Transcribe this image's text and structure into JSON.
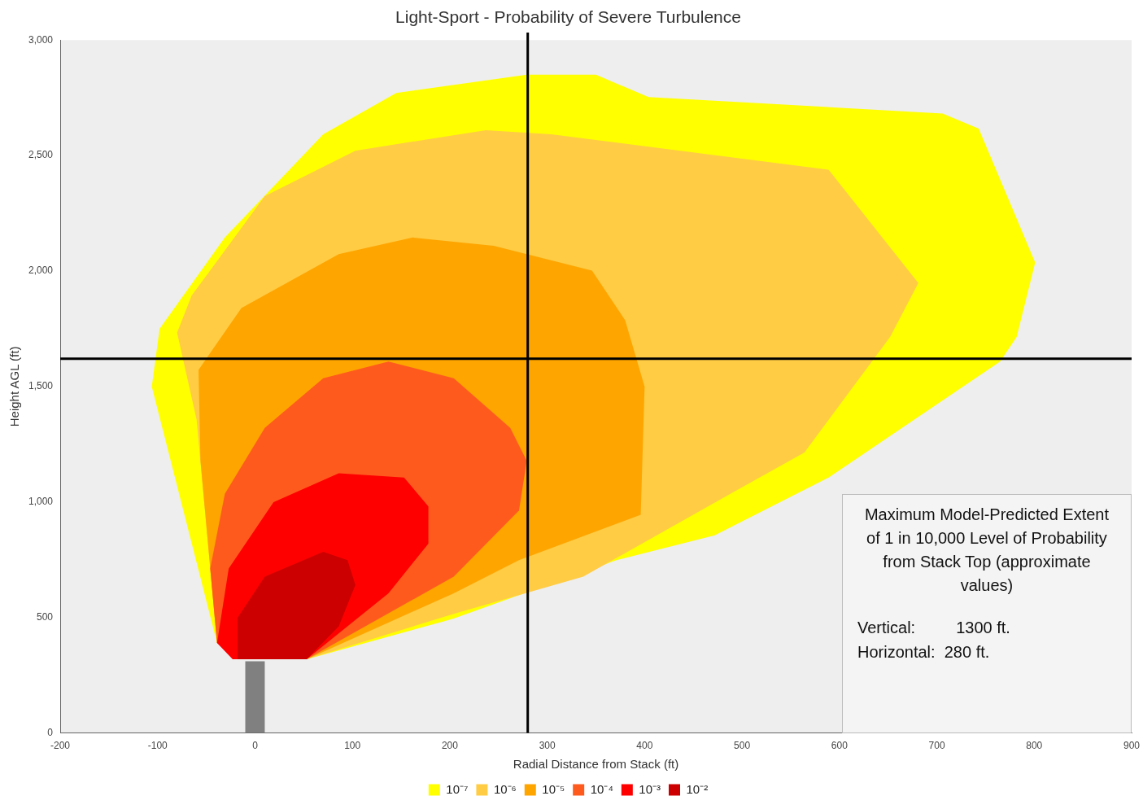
{
  "chart_data": {
    "type": "area",
    "title": "Light-Sport - Probability of Severe Turbulence",
    "xlabel": "Radial Distance from Stack (ft)",
    "ylabel": "Height AGL (ft)",
    "xlim": [
      -200,
      900
    ],
    "xticks": [
      -200,
      -100,
      0,
      100,
      200,
      300,
      400,
      500,
      600,
      700,
      800,
      900
    ],
    "ylim": [
      0,
      3000
    ],
    "yticks": [
      0,
      {
        "value": 500,
        "label": "500"
      },
      {
        "value": 1000,
        "label": "1,000"
      },
      {
        "value": 1500,
        "label": "1,500"
      },
      {
        "value": 2000,
        "label": "2,000"
      },
      {
        "value": 2500,
        "label": "2,500"
      },
      {
        "value": 3000,
        "label": "3,000"
      }
    ],
    "grid": false,
    "legend": "bottom",
    "marker": "none",
    "series": [
      {
        "name": "10⁻⁷",
        "color": "#ffff00",
        "x": [
          -39,
          -106,
          -98,
          -31,
          70,
          145,
          279,
          350,
          404,
          706,
          743,
          801,
          782,
          765,
          589,
          472,
          371,
          204,
          53,
          -14,
          -39
        ],
        "values": [
          390,
          1500,
          1750,
          2145,
          2592,
          2771,
          2850,
          2850,
          2753,
          2682,
          2617,
          2037,
          1715,
          1608,
          1106,
          856,
          748,
          495,
          319,
          319,
          390
        ]
      },
      {
        "name": "10⁻⁶",
        "color": "#ffcc44",
        "x": [
          -39,
          -60,
          -80,
          -65,
          10,
          103,
          237,
          304,
          589,
          681,
          652,
          564,
          488,
          337,
          204,
          53,
          -39
        ],
        "values": [
          390,
          1357,
          1733,
          1894,
          2324,
          2521,
          2610,
          2592,
          2438,
          1948,
          1715,
          1214,
          1035,
          677,
          516,
          319,
          390
        ]
      },
      {
        "name": "10⁻⁵",
        "color": "#ffa500",
        "x": [
          -39,
          -56,
          -58,
          -14,
          86,
          162,
          245,
          346,
          380,
          400,
          396,
          271,
          204,
          53,
          -39
        ],
        "values": [
          390,
          1178,
          1572,
          1840,
          2073,
          2145,
          2109,
          2002,
          1787,
          1500,
          945,
          748,
          605,
          319,
          390
        ]
      },
      {
        "name": "10⁻⁴",
        "color": "#ff5a1e",
        "x": [
          -39,
          -46,
          -31,
          10,
          70,
          137,
          204,
          262,
          279,
          271,
          204,
          53,
          -39
        ],
        "values": [
          390,
          712,
          1035,
          1321,
          1536,
          1608,
          1536,
          1321,
          1178,
          963,
          677,
          319,
          390
        ]
      },
      {
        "name": "10⁻³",
        "color": "#ff0000",
        "x": [
          -39,
          -27,
          19,
          86,
          153,
          178,
          178,
          137,
          53,
          -23,
          -39
        ],
        "values": [
          390,
          712,
          999,
          1124,
          1106,
          981,
          820,
          605,
          319,
          319,
          390
        ]
      },
      {
        "name": "10⁻²",
        "color": "#cc0000",
        "x": [
          -18,
          -18,
          10,
          70,
          95,
          103,
          86,
          53,
          -18
        ],
        "values": [
          319,
          498,
          677,
          784,
          748,
          641,
          462,
          319,
          319
        ]
      },
      {
        "color": "#808080",
        "x": [
          -10,
          10,
          10,
          -10,
          -10
        ],
        "values": [
          0,
          0,
          310,
          310,
          0
        ]
      }
    ],
    "ref_lines": [
      {
        "axis": "x",
        "value": 280,
        "color": "#000000"
      },
      {
        "axis": "y",
        "value": 1620,
        "color": "#000000"
      }
    ],
    "annotations": [
      "Maximum Model-Predicted Extent of 1 in 10,000 Level of Probability from Stack Top (approximate values)",
      "Vertical:         1300 ft.",
      "Horizontal:  280 ft."
    ]
  }
}
